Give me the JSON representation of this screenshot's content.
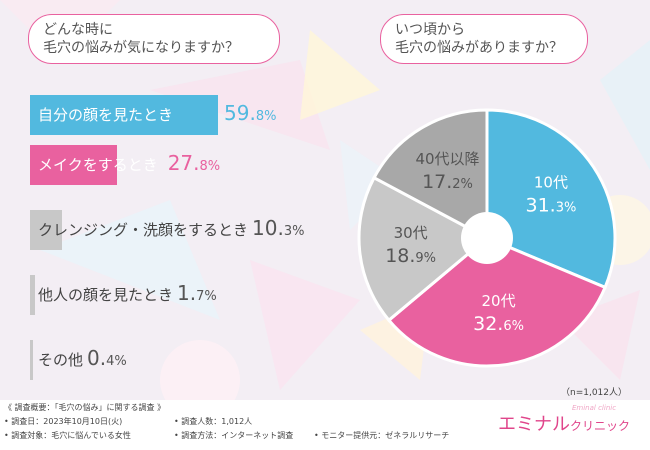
{
  "left_question": [
    "どんな時に",
    "毛穴の悩みが気になりますか？"
  ],
  "right_question": [
    "いつ頃から",
    "毛穴の悩みがありますか？"
  ],
  "chart_data": [
    {
      "type": "bar",
      "categories": [
        "自分の顔を見たとき",
        "メイクをするとき",
        "クレンジング・洗顔をするとき",
        "他人の顔を見たとき",
        "その他"
      ],
      "values": [
        59.8,
        27.8,
        10.3,
        1.7,
        0.4
      ],
      "value_labels": [
        [
          "59.",
          "8%"
        ],
        [
          "27.",
          "8%"
        ],
        [
          "10.",
          "3%"
        ],
        [
          "1.",
          "7%"
        ],
        [
          "0.",
          "4%"
        ]
      ],
      "colors": [
        "#52b9df",
        "#e9619f",
        "#c8c8c8",
        "#c8c8c8",
        "#c8c8c8"
      ]
    },
    {
      "type": "pie",
      "categories": [
        "10代",
        "20代",
        "30代",
        "40代以降"
      ],
      "values": [
        31.3,
        32.6,
        18.9,
        17.2
      ],
      "value_labels": [
        [
          "31.",
          "3%"
        ],
        [
          "32.",
          "6%"
        ],
        [
          "18.",
          "9%"
        ],
        [
          "17.",
          "2%"
        ]
      ],
      "colors": [
        "#52b9df",
        "#e9619f",
        "#c8c8c8",
        "#a8a8a8"
      ]
    }
  ],
  "sample_size": "（n=1,012人）",
  "survey_notes": {
    "title": "《 調査概要：「毛穴の悩み」に関する調査 》",
    "date": "• 調査日：2023年10月10日(火)",
    "target": "• 調査対象：毛穴に悩んでいる女性",
    "count": "• 調査人数：1,012人",
    "method": "• 調査方法：インターネット調査",
    "provider": "• モニター提供元：ゼネラルリサーチ"
  },
  "logo": {
    "main": "エミナル",
    "sub": "クリニック",
    "tiny": "Eminal clinic"
  }
}
